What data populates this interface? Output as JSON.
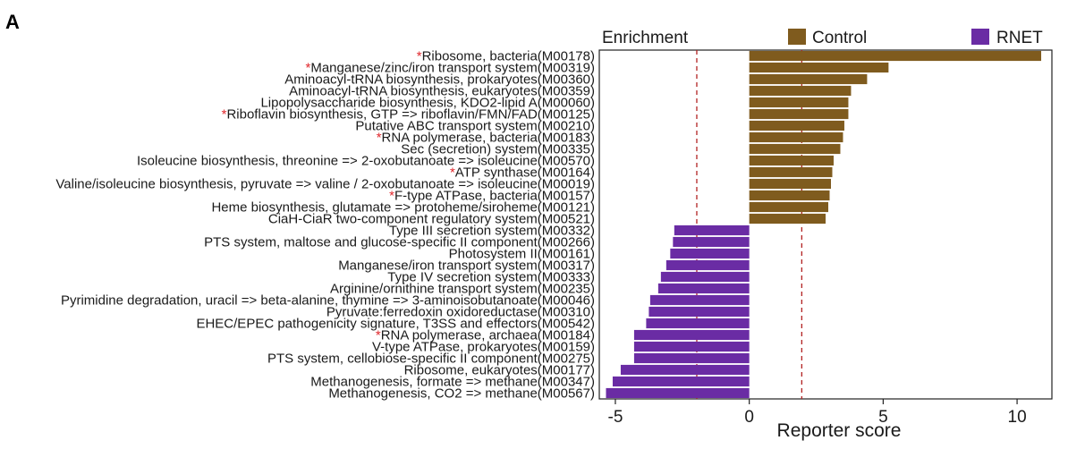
{
  "panel_label": "A",
  "colors": {
    "control": "#7f5b1e",
    "rnet": "#6a2ca4",
    "threshold": "#b22222",
    "star": "#e0262b"
  },
  "chart_data": {
    "type": "bar",
    "orientation": "horizontal",
    "xlabel": "Reporter score",
    "legend": {
      "title": "Enrichment",
      "placement": "top",
      "entries": [
        {
          "name": "Control",
          "color": "#7f5b1e"
        },
        {
          "name": "RNET",
          "color": "#6a2ca4"
        }
      ]
    },
    "xlim": [
      -5.6,
      11.3
    ],
    "xticks": [
      -5,
      0,
      5,
      10
    ],
    "threshold_lines": [
      -1.96,
      1.96
    ],
    "significance_marker": "*",
    "bars": [
      {
        "label": "Ribosome, bacteria(M00178)",
        "value": 10.9,
        "group": "Control",
        "marked": true
      },
      {
        "label": "Manganese/zinc/iron transport system(M00319)",
        "value": 5.2,
        "group": "Control",
        "marked": true
      },
      {
        "label": "Aminoacyl-tRNA biosynthesis, prokaryotes(M00360)",
        "value": 4.4,
        "group": "Control",
        "marked": false
      },
      {
        "label": "Aminoacyl-tRNA biosynthesis, eukaryotes(M00359)",
        "value": 3.8,
        "group": "Control",
        "marked": false
      },
      {
        "label": "Lipopolysaccharide biosynthesis, KDO2-lipid A(M00060)",
        "value": 3.7,
        "group": "Control",
        "marked": false
      },
      {
        "label": "Riboflavin biosynthesis, GTP => riboflavin/FMN/FAD(M00125)",
        "value": 3.7,
        "group": "Control",
        "marked": true
      },
      {
        "label": "Putative ABC transport system(M00210)",
        "value": 3.55,
        "group": "Control",
        "marked": false
      },
      {
        "label": "RNA polymerase, bacteria(M00183)",
        "value": 3.5,
        "group": "Control",
        "marked": true
      },
      {
        "label": "Sec (secretion) system(M00335)",
        "value": 3.4,
        "group": "Control",
        "marked": false
      },
      {
        "label": "Isoleucine biosynthesis, threonine => 2-oxobutanoate => isoleucine(M00570)",
        "value": 3.15,
        "group": "Control",
        "marked": false
      },
      {
        "label": "ATP synthase(M00164)",
        "value": 3.1,
        "group": "Control",
        "marked": true
      },
      {
        "label": "Valine/isoleucine biosynthesis, pyruvate => valine / 2-oxobutanoate => isoleucine(M00019)",
        "value": 3.05,
        "group": "Control",
        "marked": false
      },
      {
        "label": "F-type ATPase, bacteria(M00157)",
        "value": 3.0,
        "group": "Control",
        "marked": true
      },
      {
        "label": "Heme biosynthesis, glutamate => protoheme/siroheme(M00121)",
        "value": 2.95,
        "group": "Control",
        "marked": false
      },
      {
        "label": "CiaH-CiaR two-component regulatory system(M00521)",
        "value": 2.85,
        "group": "Control",
        "marked": false
      },
      {
        "label": "Type III secretion system(M00332)",
        "value": -2.8,
        "group": "RNET",
        "marked": false
      },
      {
        "label": "PTS system, maltose and glucose-specific II component(M00266)",
        "value": -2.85,
        "group": "RNET",
        "marked": false
      },
      {
        "label": "Photosystem II(M00161)",
        "value": -2.95,
        "group": "RNET",
        "marked": false
      },
      {
        "label": "Manganese/iron transport system(M00317)",
        "value": -3.1,
        "group": "RNET",
        "marked": false
      },
      {
        "label": "Type IV secretion system(M00333)",
        "value": -3.3,
        "group": "RNET",
        "marked": false
      },
      {
        "label": "Arginine/ornithine transport system(M00235)",
        "value": -3.4,
        "group": "RNET",
        "marked": false
      },
      {
        "label": "Pyrimidine degradation, uracil => beta-alanine, thymine => 3-aminoisobutanoate(M00046)",
        "value": -3.7,
        "group": "RNET",
        "marked": false
      },
      {
        "label": "Pyruvate:ferredoxin oxidoreductase(M00310)",
        "value": -3.75,
        "group": "RNET",
        "marked": false
      },
      {
        "label": "EHEC/EPEC pathogenicity signature, T3SS and effectors(M00542)",
        "value": -3.85,
        "group": "RNET",
        "marked": false
      },
      {
        "label": "RNA polymerase, archaea(M00184)",
        "value": -4.3,
        "group": "RNET",
        "marked": true
      },
      {
        "label": "V-type ATPase, prokaryotes(M00159)",
        "value": -4.3,
        "group": "RNET",
        "marked": false
      },
      {
        "label": "PTS system, cellobiose-specific II component(M00275)",
        "value": -4.3,
        "group": "RNET",
        "marked": false
      },
      {
        "label": "Ribosome, eukaryotes(M00177)",
        "value": -4.8,
        "group": "RNET",
        "marked": false
      },
      {
        "label": "Methanogenesis, formate => methane(M00347)",
        "value": -5.1,
        "group": "RNET",
        "marked": false
      },
      {
        "label": "Methanogenesis, CO2 => methane(M00567)",
        "value": -5.35,
        "group": "RNET",
        "marked": false
      }
    ]
  }
}
